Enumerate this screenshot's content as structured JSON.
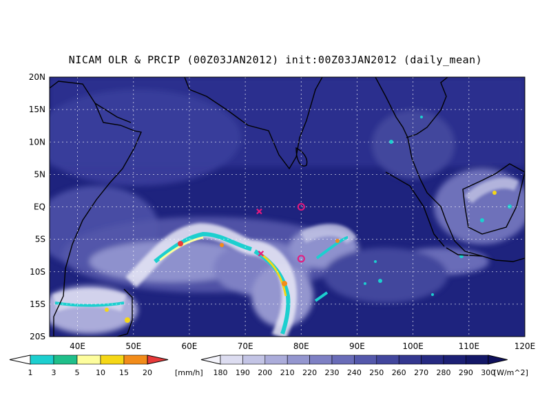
{
  "title": "NICAM OLR & PRCIP (00Z03JAN2012) init:00Z03JAN2012 (daily_mean)",
  "map": {
    "lon_range": [
      35,
      120
    ],
    "lat_range": [
      -20,
      20
    ],
    "lon_ticks": [
      "40E",
      "50E",
      "60E",
      "70E",
      "80E",
      "90E",
      "100E",
      "110E",
      "120E"
    ],
    "lat_ticks": [
      "20N",
      "15N",
      "10N",
      "5N",
      "EQ",
      "5S",
      "10S",
      "15S",
      "20S"
    ],
    "gridlines": "dotted",
    "background_color": "#1e237e",
    "coast_color": "#000000"
  },
  "markers": [
    {
      "type": "x",
      "lon": 72.5,
      "lat": -0.7,
      "color": "#e6197d"
    },
    {
      "type": "x",
      "lon": 72.8,
      "lat": -7.2,
      "color": "#e6197d"
    },
    {
      "type": "circle",
      "lon": 80.0,
      "lat": 0.0,
      "color": "#e6197d"
    },
    {
      "type": "circle",
      "lon": 80.0,
      "lat": -8.0,
      "color": "#e6197d"
    }
  ],
  "precip_bar": {
    "labels": [
      "1",
      "3",
      "5",
      "10",
      "15",
      "20"
    ],
    "unit": "[mm/h]",
    "colors": [
      "#1ccfcf",
      "#1fbf8a",
      "#fdfd9d",
      "#f5d716",
      "#f28c1a",
      "#e83a3a"
    ]
  },
  "olr_bar": {
    "labels": [
      "180",
      "190",
      "200",
      "210",
      "220",
      "230",
      "240",
      "250",
      "260",
      "270",
      "280",
      "290",
      "300"
    ],
    "unit": "[W/m^2]",
    "colors": [
      "#f4f4fb",
      "#dcdcf0",
      "#c3c4e5",
      "#abacda",
      "#9496cf",
      "#7e80c4",
      "#696cb8",
      "#5458ab",
      "#42469d",
      "#33378f",
      "#262a82",
      "#1c2075",
      "#141868",
      "#0f115d"
    ]
  }
}
